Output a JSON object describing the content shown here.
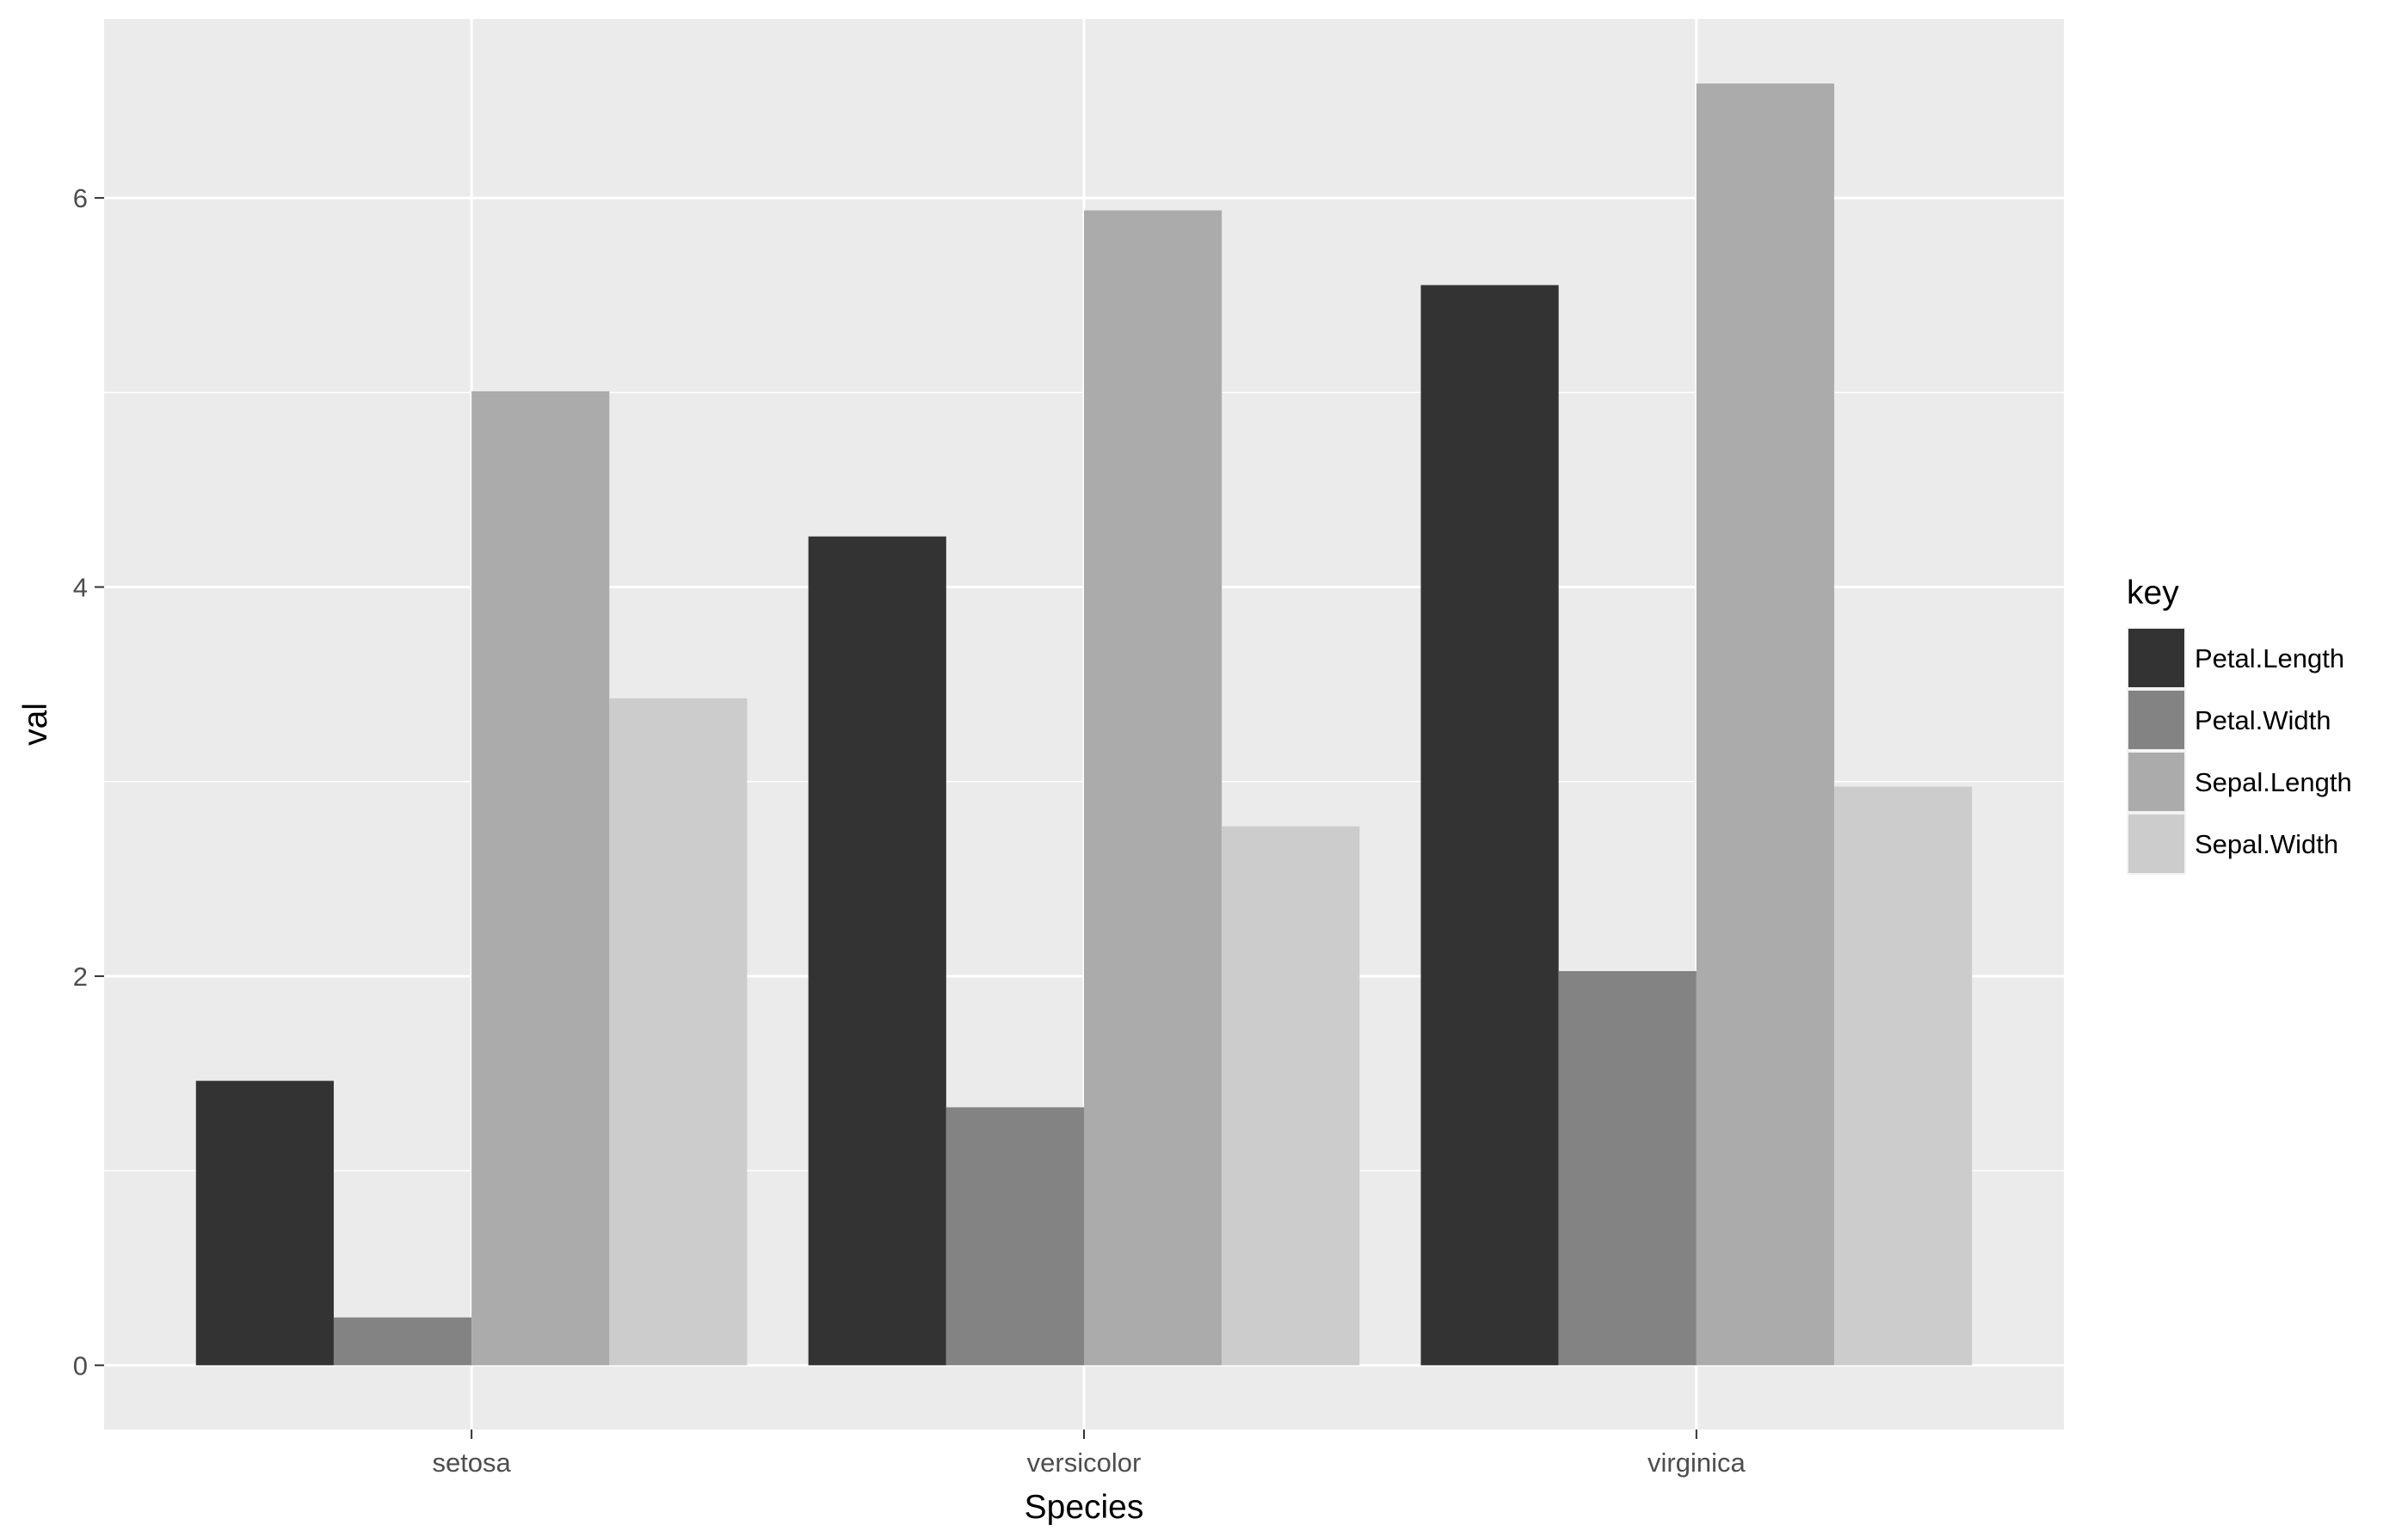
{
  "chart_data": {
    "type": "bar",
    "title": "",
    "xlabel": "Species",
    "ylabel": "val",
    "categories": [
      "setosa",
      "versicolor",
      "virginica"
    ],
    "series": [
      {
        "name": "Petal.Length",
        "values": [
          1.462,
          4.26,
          5.552
        ],
        "color": "#333333"
      },
      {
        "name": "Petal.Width",
        "values": [
          0.246,
          1.326,
          2.026
        ],
        "color": "#838383"
      },
      {
        "name": "Sepal.Length",
        "values": [
          5.006,
          5.936,
          6.588
        ],
        "color": "#ababab"
      },
      {
        "name": "Sepal.Width",
        "values": [
          3.428,
          2.77,
          2.974
        ],
        "color": "#cccccc"
      }
    ],
    "ylim": [
      -0.33,
      6.92
    ],
    "yticks": [
      0,
      2,
      4,
      6
    ],
    "y_minor_ticks": [
      1,
      3,
      5
    ],
    "grid": true,
    "legend": {
      "title": "key",
      "placement": "right"
    },
    "panel_background": "#ebebeb",
    "grid_color": "#ffffff"
  }
}
